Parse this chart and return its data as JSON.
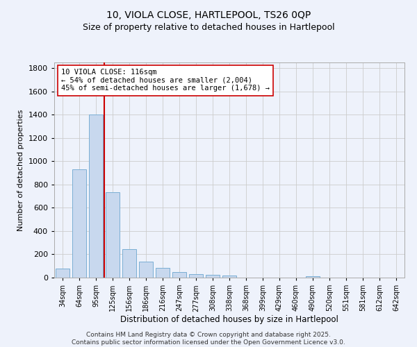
{
  "title_line1": "10, VIOLA CLOSE, HARTLEPOOL, TS26 0QP",
  "title_line2": "Size of property relative to detached houses in Hartlepool",
  "xlabel": "Distribution of detached houses by size in Hartlepool",
  "ylabel": "Number of detached properties",
  "categories": [
    "34sqm",
    "64sqm",
    "95sqm",
    "125sqm",
    "156sqm",
    "186sqm",
    "216sqm",
    "247sqm",
    "277sqm",
    "308sqm",
    "338sqm",
    "368sqm",
    "399sqm",
    "429sqm",
    "460sqm",
    "490sqm",
    "520sqm",
    "551sqm",
    "581sqm",
    "612sqm",
    "642sqm"
  ],
  "values": [
    80,
    930,
    1400,
    735,
    245,
    140,
    85,
    50,
    30,
    25,
    15,
    0,
    0,
    0,
    0,
    10,
    0,
    0,
    0,
    0,
    0
  ],
  "bar_color": "#c8d8ee",
  "bar_edge_color": "#7aaed4",
  "vline_color": "#cc0000",
  "annotation_text": "10 VIOLA CLOSE: 116sqm\n← 54% of detached houses are smaller (2,004)\n45% of semi-detached houses are larger (1,678) →",
  "annotation_box_color": "#ffffff",
  "annotation_box_edge": "#cc0000",
  "ylim": [
    0,
    1850
  ],
  "yticks": [
    0,
    200,
    400,
    600,
    800,
    1000,
    1200,
    1400,
    1600,
    1800
  ],
  "background_color": "#eef2fb",
  "grid_color": "#cccccc",
  "footer_line1": "Contains HM Land Registry data © Crown copyright and database right 2025.",
  "footer_line2": "Contains public sector information licensed under the Open Government Licence v3.0."
}
